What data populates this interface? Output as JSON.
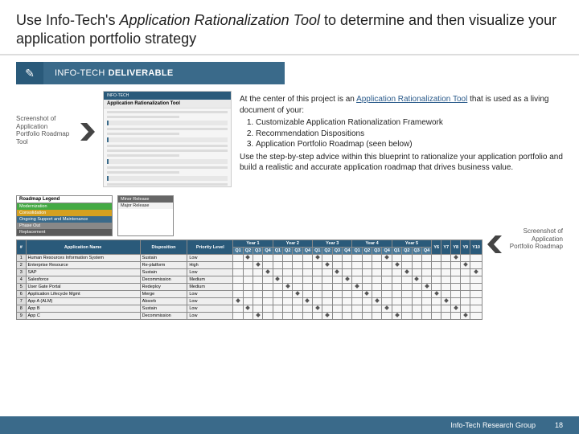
{
  "title_prefix": "Use Info-Tech's ",
  "title_italic": "Application Rationalization Tool",
  "title_suffix": " to determine and then visualize your application portfolio strategy",
  "deliverable_icon": "✎",
  "deliverable_label_a": "INFO-TECH",
  "deliverable_label_b": "DELIVERABLE",
  "caption_left": "Screenshot of Application Portfolio Roadmap Tool",
  "thumb_brand": "INFO-TECH",
  "thumb_title": "Application Rationalization Tool",
  "desc_intro_a": "At the center of this project is an ",
  "desc_link": "Application Rationalization Tool",
  "desc_intro_b": " that is used as a living document of your:",
  "desc_items": {
    "0": "Customizable Application Rationalization Framework",
    "1": "Recommendation Dispositions",
    "2": "Application Portfolio Roadmap (seen below)"
  },
  "desc_outro": "Use the step-by-step advice within this blueprint to rationalize your application portfolio and build a realistic and accurate application roadmap that drives business value.",
  "legend": {
    "header": "Roadmap Legend",
    "rows": [
      {
        "label": "Modernization",
        "color": "#44aa44"
      },
      {
        "label": "Consolidation",
        "color": "#d4a020"
      },
      {
        "label": "Ongoing Support and Maintenance",
        "color": "#3a6a8a"
      },
      {
        "label": "Phase Out",
        "color": "#888888"
      },
      {
        "label": "Replacement",
        "color": "#5a5a5a"
      }
    ],
    "rows2": [
      {
        "label": "Minor Release",
        "color": "#666666"
      },
      {
        "label": "Major Release",
        "color": "#f2f2f2",
        "text": "#222"
      }
    ]
  },
  "table": {
    "year_headers": [
      "Year 1",
      "Year 2",
      "Year 3",
      "Year 4",
      "Year 5",
      "Y6",
      "Y7",
      "Y8",
      "Y9",
      "Y10"
    ],
    "q_headers": [
      "Q1",
      "Q2",
      "Q3",
      "Q4"
    ],
    "left_headers": [
      "#",
      "Application Name",
      "Disposition",
      "Priority Level"
    ],
    "rows": [
      {
        "idx": "1",
        "name": "Human Resources Information System",
        "disp": "Sustain",
        "prio": "Low"
      },
      {
        "idx": "2",
        "name": "Enterprise Resource",
        "disp": "Re-platform",
        "prio": "High"
      },
      {
        "idx": "3",
        "name": "SAP",
        "disp": "Sustain",
        "prio": "Low"
      },
      {
        "idx": "4",
        "name": "Salesforce",
        "disp": "Decommission",
        "prio": "Medium"
      },
      {
        "idx": "5",
        "name": "User Gate Portal",
        "disp": "Redeploy",
        "prio": "Medium"
      },
      {
        "idx": "6",
        "name": "Application Lifecycle Mgmt",
        "disp": "Merge",
        "prio": "Low"
      },
      {
        "idx": "7",
        "name": "App A (ALM)",
        "disp": "Absorb",
        "prio": "Low"
      },
      {
        "idx": "8",
        "name": "App B",
        "disp": "Sustain",
        "prio": "Low"
      },
      {
        "idx": "9",
        "name": "App C",
        "disp": "Decommission",
        "prio": "Low"
      }
    ]
  },
  "caption_right": "Screenshot of Application Portfolio Roadmap",
  "footer_org": "Info-Tech Research Group",
  "footer_page": "18",
  "colors": {
    "brand": "#3a6a8a",
    "brand_dark": "#2a5a7a",
    "chevron": "#444444"
  }
}
